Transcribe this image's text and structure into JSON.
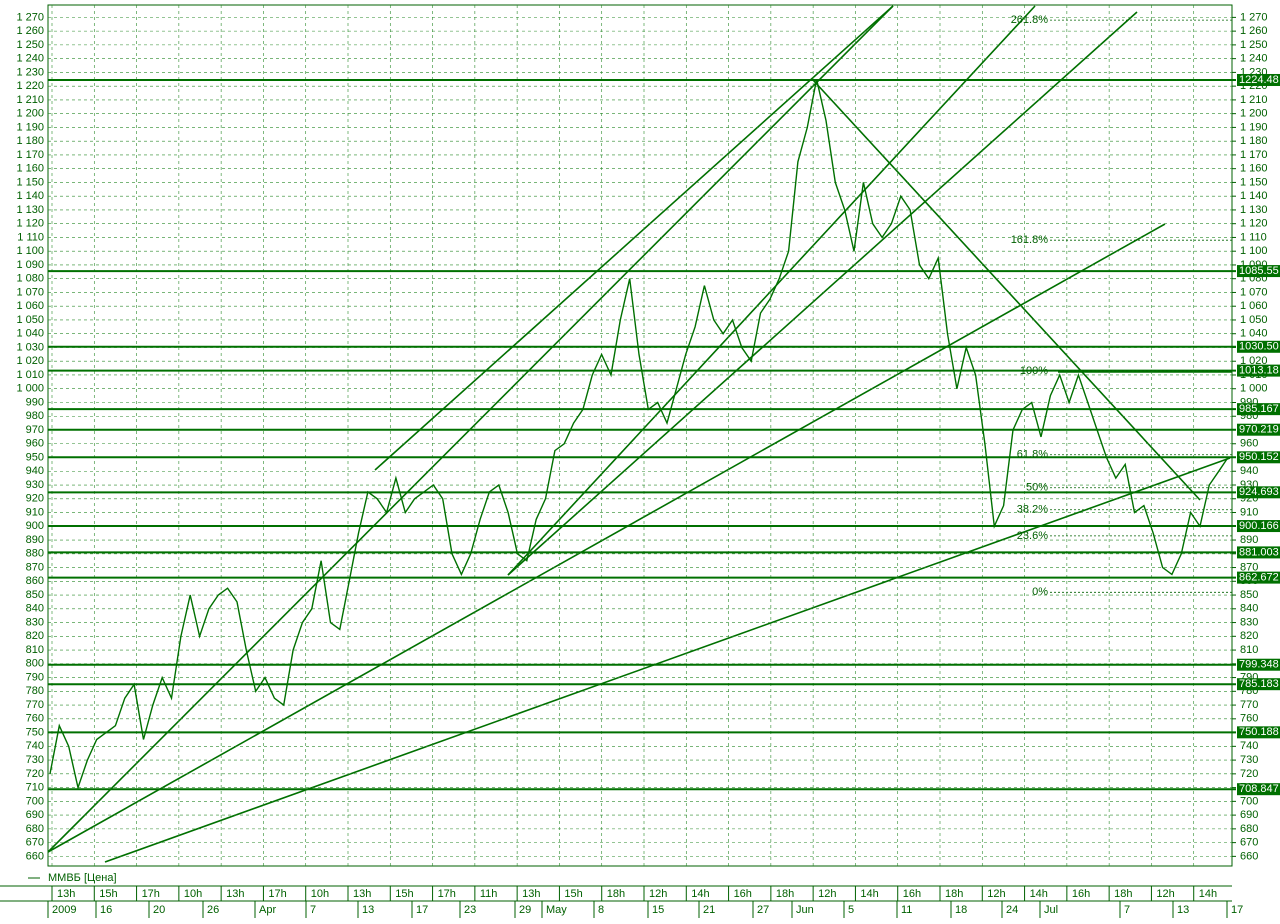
{
  "chart_data": {
    "type": "line",
    "ylim": [
      653,
      1279
    ],
    "yticks": [
      660,
      670,
      680,
      690,
      700,
      710,
      720,
      730,
      740,
      750,
      760,
      770,
      780,
      790,
      800,
      810,
      820,
      830,
      840,
      850,
      860,
      870,
      880,
      890,
      900,
      910,
      920,
      930,
      940,
      950,
      960,
      970,
      980,
      990,
      {
        "value": 1000,
        "label": "1 000"
      },
      {
        "value": 1010,
        "label": "1 010"
      },
      {
        "value": 1020,
        "label": "1 020"
      },
      {
        "value": 1030,
        "label": "1 030"
      },
      {
        "value": 1040,
        "label": "1 040"
      },
      {
        "value": 1050,
        "label": "1 050"
      },
      {
        "value": 1060,
        "label": "1 060"
      },
      {
        "value": 1070,
        "label": "1 070"
      },
      {
        "value": 1080,
        "label": "1 080"
      },
      {
        "value": 1090,
        "label": "1 090"
      },
      {
        "value": 1100,
        "label": "1 100"
      },
      {
        "value": 1110,
        "label": "1 110"
      },
      {
        "value": 1120,
        "label": "1 120"
      },
      {
        "value": 1130,
        "label": "1 130"
      },
      {
        "value": 1140,
        "label": "1 140"
      },
      {
        "value": 1150,
        "label": "1 150"
      },
      {
        "value": 1160,
        "label": "1 160"
      },
      {
        "value": 1170,
        "label": "1 170"
      },
      {
        "value": 1180,
        "label": "1 180"
      },
      {
        "value": 1190,
        "label": "1 190"
      },
      {
        "value": 1200,
        "label": "1 200"
      },
      {
        "value": 1210,
        "label": "1 210"
      },
      {
        "value": 1220,
        "label": "1 220"
      },
      {
        "value": 1230,
        "label": "1 230"
      },
      {
        "value": 1240,
        "label": "1 240"
      },
      {
        "value": 1250,
        "label": "1 250"
      },
      {
        "value": 1260,
        "label": "1 260"
      },
      {
        "value": 1270,
        "label": "1 270"
      }
    ],
    "grid": true,
    "x_labels_top": [
      "13h",
      "15h",
      "17h",
      "10h",
      "13h",
      "17h",
      "10h",
      "13h",
      "15h",
      "17h",
      "11h",
      "13h",
      "15h",
      "18h",
      "12h",
      "14h",
      "16h",
      "18h",
      "12h",
      "14h",
      "16h",
      "18h",
      "12h",
      "14h",
      "16h",
      "18h",
      "12h",
      "14h"
    ],
    "x_labels_bottom": [
      "2009",
      "16",
      "20",
      "26",
      "Apr",
      "7",
      "13",
      "17",
      "23",
      "29",
      "May",
      "8",
      "15",
      "21",
      "27",
      "Jun",
      "5",
      "11",
      "18",
      "24",
      "Jul",
      "7",
      "13",
      "17"
    ],
    "series": [
      {
        "name": "ММВБ [Цена]",
        "color": "#007000",
        "values": [
          720,
          755,
          740,
          710,
          730,
          745,
          750,
          755,
          775,
          785,
          745,
          770,
          790,
          775,
          820,
          850,
          820,
          840,
          850,
          855,
          845,
          810,
          780,
          790,
          775,
          770,
          810,
          830,
          840,
          875,
          830,
          825,
          860,
          895,
          925,
          920,
          910,
          935,
          910,
          920,
          925,
          930,
          920,
          880,
          865,
          880,
          905,
          925,
          930,
          910,
          880,
          875,
          905,
          920,
          955,
          960,
          975,
          985,
          1010,
          1025,
          1010,
          1050,
          1080,
          1025,
          985,
          990,
          975,
          1000,
          1025,
          1045,
          1075,
          1050,
          1040,
          1050,
          1030,
          1020,
          1055,
          1065,
          1080,
          1100,
          1165,
          1190,
          1225,
          1195,
          1150,
          1130,
          1100,
          1150,
          1120,
          1110,
          1120,
          1140,
          1130,
          1090,
          1080,
          1095,
          1040,
          1000,
          1030,
          1010,
          960,
          900,
          915,
          970,
          985,
          990,
          965,
          995,
          1010,
          990,
          1010,
          990,
          970,
          950,
          935,
          945,
          910,
          915,
          895,
          870,
          865,
          880,
          910,
          900,
          930,
          940,
          950
        ]
      }
    ],
    "levels": [
      1224.48,
      1085.55,
      {
        "value": 1030.5,
        "label": "1030.50"
      },
      1013.18,
      985.167,
      970.219,
      950.152,
      924.693,
      900.166,
      881.003,
      862.672,
      799.348,
      785.183,
      750.188,
      708.847
    ],
    "fib_levels": [
      {
        "label": "261.8%",
        "value": 1268
      },
      {
        "label": "161.8%",
        "value": 1108
      },
      {
        "label": "100%",
        "value": 1013
      },
      {
        "label": "61.8%",
        "value": 952
      },
      {
        "label": "50%",
        "value": 928
      },
      {
        "label": "38.2%",
        "value": 912
      },
      {
        "label": "23.6%",
        "value": 893
      },
      {
        "label": "0%",
        "value": 852
      }
    ]
  }
}
